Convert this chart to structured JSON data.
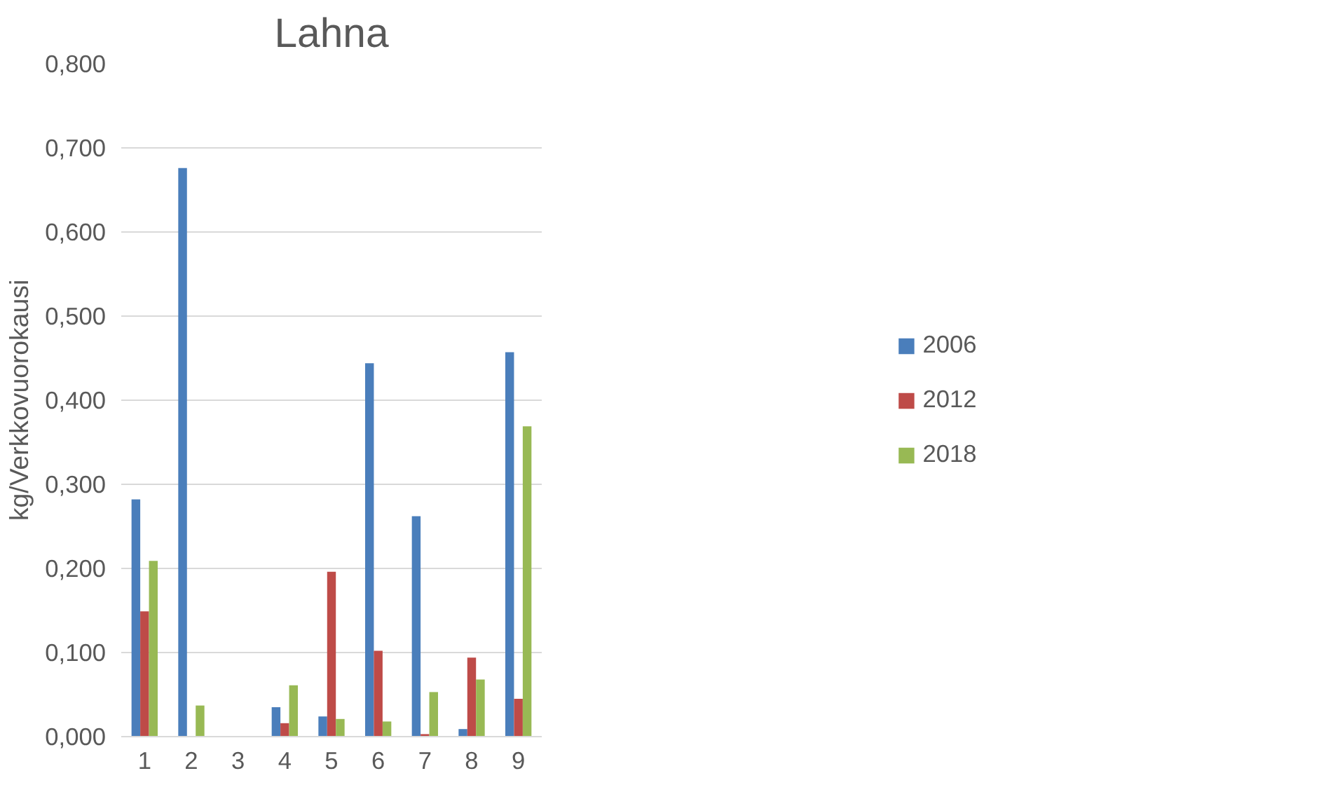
{
  "chart_data": {
    "type": "bar",
    "title": "Lahna",
    "ylabel": "kg/Verkkovuorokausi",
    "categories": [
      "1",
      "2",
      "3",
      "4",
      "5",
      "6",
      "7",
      "8",
      "9"
    ],
    "series": [
      {
        "name": "2006",
        "color": "#4a7ebb",
        "values": [
          0.282,
          0.676,
          0,
          0.035,
          0.024,
          0.444,
          0.262,
          0.009,
          0.457
        ]
      },
      {
        "name": "2012",
        "color": "#be4b48",
        "values": [
          0.149,
          0,
          0,
          0.016,
          0.196,
          0.102,
          0.003,
          0.094,
          0.045
        ]
      },
      {
        "name": "2018",
        "color": "#98b954",
        "values": [
          0.209,
          0.037,
          0,
          0.061,
          0.021,
          0.018,
          0.053,
          0.068,
          0.369
        ]
      }
    ],
    "ylim": [
      0,
      0.8
    ],
    "yticks": [
      {
        "value": 0,
        "label": "0,000"
      },
      {
        "value": 0.1,
        "label": "0,100"
      },
      {
        "value": 0.2,
        "label": "0,200"
      },
      {
        "value": 0.3,
        "label": "0,300"
      },
      {
        "value": 0.4,
        "label": "0,400"
      },
      {
        "value": 0.5,
        "label": "0,500"
      },
      {
        "value": 0.6,
        "label": "0,600"
      },
      {
        "value": 0.7,
        "label": "0,700"
      },
      {
        "value": 0.8,
        "label": "0,800"
      }
    ],
    "grid": "y",
    "legend": "right"
  }
}
